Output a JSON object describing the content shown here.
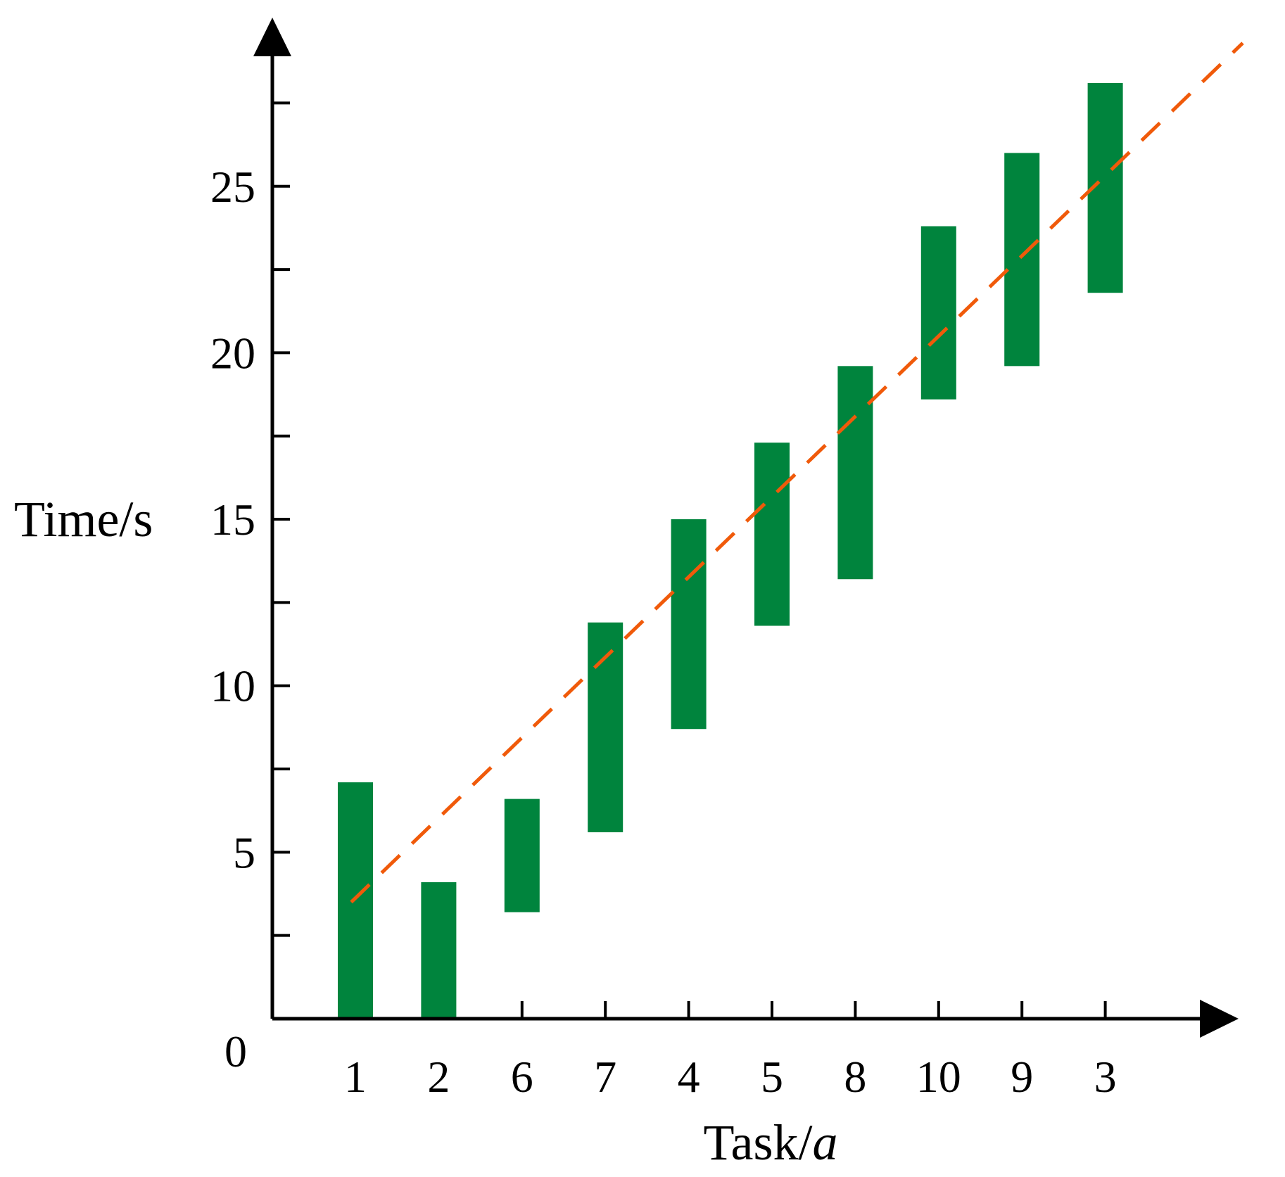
{
  "chart_data": {
    "type": "bar",
    "subtype": "floating-range",
    "xlabel": "Task/",
    "xlabel_italic": "a",
    "ylabel": "Time/s",
    "origin_label": "0",
    "categories": [
      "1",
      "2",
      "6",
      "7",
      "4",
      "5",
      "8",
      "10",
      "9",
      "3"
    ],
    "series": [
      {
        "ranges": [
          [
            0,
            7.1
          ],
          [
            0,
            4.1
          ],
          [
            3.2,
            6.6
          ],
          [
            5.6,
            11.9
          ],
          [
            8.7,
            15.0
          ],
          [
            11.8,
            17.3
          ],
          [
            13.2,
            19.6
          ],
          [
            18.6,
            23.8
          ],
          [
            19.6,
            26.0
          ],
          [
            21.8,
            28.1
          ]
        ]
      }
    ],
    "trendline": {
      "x": [
        0.95,
        11.65
      ],
      "y": [
        3.5,
        29.3
      ],
      "style": "dashed"
    },
    "yticks_major": [
      5,
      10,
      15,
      20,
      25
    ],
    "yticks_major_labels": [
      "5",
      "10",
      "15",
      "20",
      "25"
    ],
    "yticks_minor": [
      2.5,
      7.5,
      12.5,
      17.5,
      22.5,
      27.5
    ],
    "ylim": [
      0,
      30
    ],
    "grid": false,
    "legend": "none",
    "colors": {
      "bar": "#00843D",
      "trend": "#F05A0A",
      "axis": "#000000"
    }
  }
}
